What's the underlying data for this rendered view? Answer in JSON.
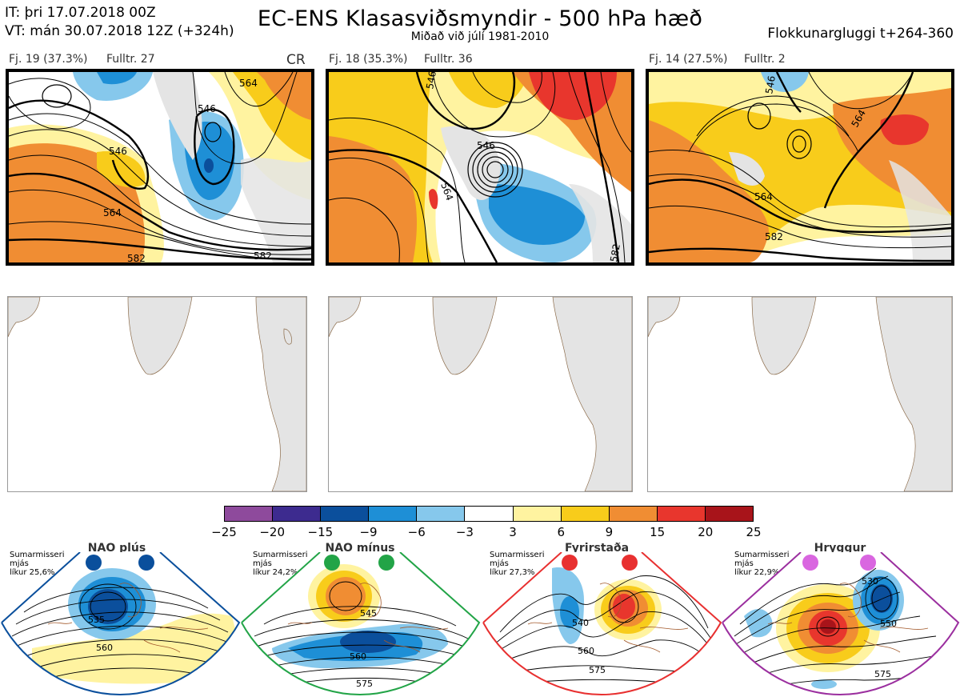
{
  "header": {
    "it_line": "IT: þri 17.07.2018 00Z",
    "vt_line": "VT: mán 30.07.2018 12Z  (+324h)",
    "title": "EC-ENS Klasasviðsmyndir - 500 hPa hæð",
    "subtitle": "Miðað við júlí 1981-2010",
    "window": "Flokkunargluggi t+264-360"
  },
  "clusters": [
    {
      "label": "Fj. 19 (37.3%)",
      "fulltr": "Fulltr. 27",
      "tag": "CR",
      "border_color": "#0a4f9c",
      "contour_labels": [
        "546",
        "546",
        "564",
        "582",
        "582",
        "564"
      ]
    },
    {
      "label": "Fj. 18 (35.3%)",
      "fulltr": "Fulltr. 36",
      "tag": "",
      "border_color": "#e83030",
      "contour_labels": [
        "546",
        "546",
        "564",
        "582"
      ]
    },
    {
      "label": "Fj. 14 (27.5%)",
      "fulltr": "Fulltr. 2",
      "tag": "",
      "border_color": "#e83030",
      "contour_labels": [
        "546",
        "564",
        "564",
        "582"
      ]
    }
  ],
  "colorbar": {
    "ticks": [
      "−25",
      "−20",
      "−15",
      "−9",
      "−6",
      "−3",
      "3",
      "6",
      "9",
      "15",
      "20",
      "25"
    ],
    "colors": [
      "#8e4a9c",
      "#3d2b8f",
      "#0b4f9c",
      "#1e8fd6",
      "#86c8ec",
      "#ffffff",
      "#fff3a0",
      "#f8cc1b",
      "#f08d33",
      "#e8362d",
      "#a8141a"
    ]
  },
  "regimes": [
    {
      "name": "NAO plús",
      "season": "Sumarmisseri",
      "mean": "mjás",
      "prob": "líkur 25,6%",
      "color": "#0a4f9c",
      "labels": [
        "535",
        "560"
      ]
    },
    {
      "name": "NAO mínus",
      "season": "Sumarmisseri",
      "mean": "mjás",
      "prob": "líkur 24,2%",
      "color": "#22a447",
      "labels": [
        "545",
        "560",
        "575"
      ]
    },
    {
      "name": "Fyrirstaða",
      "season": "Sumarmisseri",
      "mean": "mjás",
      "prob": "líkur 27,3%",
      "color": "#e83030",
      "labels": [
        "540",
        "560",
        "575"
      ]
    },
    {
      "name": "Hryggur",
      "season": "Sumarmisseri",
      "mean": "mjás",
      "prob": "líkur 22,9%",
      "color": "#d966e0",
      "labels": [
        "530",
        "550",
        "575"
      ]
    }
  ]
}
